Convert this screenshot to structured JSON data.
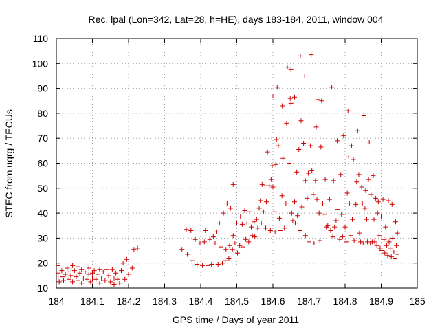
{
  "chart_data": {
    "type": "scatter",
    "title": "Rec. lpal (Lon=342, Lat=28, h=HE), days 183-184, 2011, window 004",
    "xlabel": "GPS time / Days of year 2011",
    "ylabel": "STEC from uqrg / TECUs",
    "xlim": [
      184,
      185
    ],
    "ylim": [
      10,
      110
    ],
    "x_ticks": [
      184,
      184.1,
      184.2,
      184.3,
      184.4,
      184.5,
      184.6,
      184.7,
      184.8,
      184.9,
      185
    ],
    "x_tick_labels": [
      "184",
      "184.1",
      "184.2",
      "184.3",
      "184.4",
      "184.5",
      "184.6",
      "184.7",
      "184.8",
      "184.9",
      "185"
    ],
    "y_ticks": [
      10,
      20,
      30,
      40,
      50,
      60,
      70,
      80,
      90,
      100,
      110
    ],
    "y_tick_labels": [
      "10",
      "20",
      "30",
      "40",
      "50",
      "60",
      "70",
      "80",
      "90",
      "100",
      "110"
    ],
    "grid": true,
    "marker": "+",
    "marker_color": "#cc0000",
    "series": [
      {
        "name": "STEC",
        "points": [
          [
            184.005,
            19
          ],
          [
            184.005,
            16
          ],
          [
            184.005,
            14
          ],
          [
            184.008,
            12.5
          ],
          [
            184.015,
            17
          ],
          [
            184.018,
            14.5
          ],
          [
            184.02,
            13
          ],
          [
            184.025,
            15.5
          ],
          [
            184.03,
            18
          ],
          [
            184.035,
            16.5
          ],
          [
            184.035,
            13.5
          ],
          [
            184.04,
            15
          ],
          [
            184.045,
            19
          ],
          [
            184.045,
            12.5
          ],
          [
            184.05,
            17
          ],
          [
            184.055,
            14.5
          ],
          [
            184.06,
            18.5
          ],
          [
            184.06,
            13
          ],
          [
            184.065,
            16
          ],
          [
            184.07,
            17.5
          ],
          [
            184.07,
            12
          ],
          [
            184.075,
            14
          ],
          [
            184.08,
            16.5
          ],
          [
            184.085,
            13.5
          ],
          [
            184.09,
            15.5
          ],
          [
            184.09,
            18
          ],
          [
            184.095,
            12.5
          ],
          [
            184.1,
            14
          ],
          [
            184.1,
            16
          ],
          [
            184.105,
            17
          ],
          [
            184.11,
            13.5
          ],
          [
            184.115,
            15.5
          ],
          [
            184.12,
            17.5
          ],
          [
            184.12,
            12
          ],
          [
            184.125,
            14
          ],
          [
            184.13,
            16.5
          ],
          [
            184.135,
            13
          ],
          [
            184.14,
            17.5
          ],
          [
            184.145,
            15
          ],
          [
            184.15,
            12.5
          ],
          [
            184.155,
            17.5
          ],
          [
            184.16,
            14
          ],
          [
            184.16,
            11.5
          ],
          [
            184.165,
            16
          ],
          [
            184.17,
            13.5
          ],
          [
            184.175,
            12
          ],
          [
            184.18,
            17
          ],
          [
            184.185,
            20
          ],
          [
            184.19,
            13.5
          ],
          [
            184.195,
            21.5
          ],
          [
            184.2,
            15.5
          ],
          [
            184.21,
            18
          ],
          [
            184.215,
            25.5
          ],
          [
            184.225,
            26
          ],
          [
            184.348,
            25.5
          ],
          [
            184.36,
            33.5
          ],
          [
            184.363,
            23.5
          ],
          [
            184.373,
            33
          ],
          [
            184.376,
            21
          ],
          [
            184.385,
            29.5
          ],
          [
            184.39,
            19.5
          ],
          [
            184.398,
            28
          ],
          [
            184.405,
            19
          ],
          [
            184.41,
            28.5
          ],
          [
            184.413,
            33
          ],
          [
            184.42,
            19
          ],
          [
            184.425,
            29.5
          ],
          [
            184.43,
            19.5
          ],
          [
            184.435,
            30.5
          ],
          [
            184.44,
            28
          ],
          [
            184.443,
            32.5
          ],
          [
            184.448,
            19.5
          ],
          [
            184.452,
            36
          ],
          [
            184.456,
            26.5
          ],
          [
            184.46,
            20
          ],
          [
            184.463,
            40
          ],
          [
            184.468,
            21
          ],
          [
            184.47,
            25.5
          ],
          [
            184.473,
            44
          ],
          [
            184.478,
            22
          ],
          [
            184.48,
            27
          ],
          [
            184.483,
            42
          ],
          [
            184.488,
            25.5
          ],
          [
            184.49,
            51.5
          ],
          [
            184.49,
            31
          ],
          [
            184.495,
            28
          ],
          [
            184.5,
            36
          ],
          [
            184.502,
            24
          ],
          [
            184.508,
            27
          ],
          [
            184.51,
            38.5
          ],
          [
            184.515,
            35.5
          ],
          [
            184.517,
            26.5
          ],
          [
            184.522,
            41
          ],
          [
            184.525,
            29.5
          ],
          [
            184.528,
            36
          ],
          [
            184.533,
            28.5
          ],
          [
            184.536,
            40.5
          ],
          [
            184.54,
            34.5
          ],
          [
            184.543,
            31
          ],
          [
            184.548,
            36.5
          ],
          [
            184.55,
            30.5
          ],
          [
            184.555,
            37.5
          ],
          [
            184.558,
            34
          ],
          [
            184.562,
            42
          ],
          [
            184.565,
            45
          ],
          [
            184.568,
            36
          ],
          [
            184.57,
            51.5
          ],
          [
            184.574,
            40.5
          ],
          [
            184.578,
            51
          ],
          [
            184.58,
            34
          ],
          [
            184.582,
            44.5
          ],
          [
            184.585,
            64.5
          ],
          [
            184.59,
            51
          ],
          [
            184.593,
            33
          ],
          [
            184.595,
            53.5
          ],
          [
            184.598,
            59
          ],
          [
            184.6,
            87
          ],
          [
            184.6,
            50.5
          ],
          [
            184.603,
            40.5
          ],
          [
            184.606,
            32.5
          ],
          [
            184.608,
            59.5
          ],
          [
            184.61,
            69.5
          ],
          [
            184.612,
            90.5
          ],
          [
            184.615,
            67
          ],
          [
            184.618,
            38
          ],
          [
            184.62,
            33
          ],
          [
            184.625,
            47
          ],
          [
            184.626,
            83
          ],
          [
            184.628,
            62
          ],
          [
            184.632,
            34
          ],
          [
            184.636,
            44
          ],
          [
            184.638,
            76
          ],
          [
            184.64,
            98.5
          ],
          [
            184.645,
            60
          ],
          [
            184.648,
            86
          ],
          [
            184.65,
            97.5
          ],
          [
            184.65,
            84
          ],
          [
            184.652,
            40
          ],
          [
            184.655,
            37
          ],
          [
            184.66,
            86.5
          ],
          [
            184.66,
            44.5
          ],
          [
            184.662,
            36
          ],
          [
            184.666,
            56.5
          ],
          [
            184.668,
            39
          ],
          [
            184.672,
            65.5
          ],
          [
            184.675,
            33
          ],
          [
            184.676,
            103
          ],
          [
            184.678,
            77
          ],
          [
            184.68,
            42.5
          ],
          [
            184.685,
            68
          ],
          [
            184.688,
            95
          ],
          [
            184.69,
            31
          ],
          [
            184.69,
            53
          ],
          [
            184.695,
            46
          ],
          [
            184.698,
            56
          ],
          [
            184.7,
            28.5
          ],
          [
            184.704,
            67
          ],
          [
            184.706,
            103.5
          ],
          [
            184.708,
            57
          ],
          [
            184.712,
            47.5
          ],
          [
            184.714,
            28
          ],
          [
            184.718,
            53
          ],
          [
            184.72,
            74.5
          ],
          [
            184.722,
            45.5
          ],
          [
            184.725,
            85.5
          ],
          [
            184.728,
            40
          ],
          [
            184.73,
            29
          ],
          [
            184.733,
            66.5
          ],
          [
            184.735,
            85
          ],
          [
            184.738,
            44
          ],
          [
            184.742,
            39.5
          ],
          [
            184.745,
            53.5
          ],
          [
            184.748,
            34.5
          ],
          [
            184.752,
            35
          ],
          [
            184.757,
            45.5
          ],
          [
            184.76,
            33
          ],
          [
            184.763,
            90.5
          ],
          [
            184.766,
            30.5
          ],
          [
            184.768,
            53
          ],
          [
            184.771,
            34.5
          ],
          [
            184.775,
            37
          ],
          [
            184.778,
            69
          ],
          [
            184.78,
            41.5
          ],
          [
            184.785,
            29.5
          ],
          [
            184.788,
            55.5
          ],
          [
            184.79,
            39.5
          ],
          [
            184.793,
            30.5
          ],
          [
            184.796,
            71
          ],
          [
            184.8,
            34.5
          ],
          [
            184.803,
            28.5
          ],
          [
            184.806,
            48
          ],
          [
            184.808,
            81
          ],
          [
            184.81,
            62.5
          ],
          [
            184.812,
            44
          ],
          [
            184.816,
            31
          ],
          [
            184.818,
            67
          ],
          [
            184.82,
            37.5
          ],
          [
            184.823,
            61.5
          ],
          [
            184.825,
            29
          ],
          [
            184.83,
            43.5
          ],
          [
            184.832,
            52.5
          ],
          [
            184.835,
            73
          ],
          [
            184.838,
            55.5
          ],
          [
            184.84,
            32
          ],
          [
            184.843,
            28.5
          ],
          [
            184.846,
            50.5
          ],
          [
            184.848,
            44
          ],
          [
            184.85,
            28
          ],
          [
            184.852,
            79
          ],
          [
            184.855,
            42
          ],
          [
            184.857,
            49
          ],
          [
            184.86,
            37.5
          ],
          [
            184.862,
            28.5
          ],
          [
            184.865,
            53.5
          ],
          [
            184.867,
            68.5
          ],
          [
            184.87,
            28
          ],
          [
            184.872,
            47.5
          ],
          [
            184.875,
            28.5
          ],
          [
            184.878,
            55
          ],
          [
            184.88,
            37.5
          ],
          [
            184.882,
            28.5
          ],
          [
            184.885,
            46
          ],
          [
            184.888,
            27
          ],
          [
            184.89,
            40
          ],
          [
            184.892,
            44.5
          ],
          [
            184.894,
            31
          ],
          [
            184.897,
            26
          ],
          [
            184.9,
            38.5
          ],
          [
            184.902,
            25
          ],
          [
            184.905,
            45.5
          ],
          [
            184.908,
            29.5
          ],
          [
            184.91,
            24
          ],
          [
            184.912,
            34.5
          ],
          [
            184.915,
            27
          ],
          [
            184.918,
            23
          ],
          [
            184.92,
            45
          ],
          [
            184.922,
            28.5
          ],
          [
            184.925,
            26
          ],
          [
            184.928,
            22.5
          ],
          [
            184.93,
            43.5
          ],
          [
            184.932,
            30
          ],
          [
            184.935,
            24.5
          ],
          [
            184.938,
            22
          ],
          [
            184.94,
            36.5
          ],
          [
            184.942,
            27
          ],
          [
            184.944,
            23.5
          ],
          [
            184.945,
            32
          ]
        ]
      }
    ]
  }
}
